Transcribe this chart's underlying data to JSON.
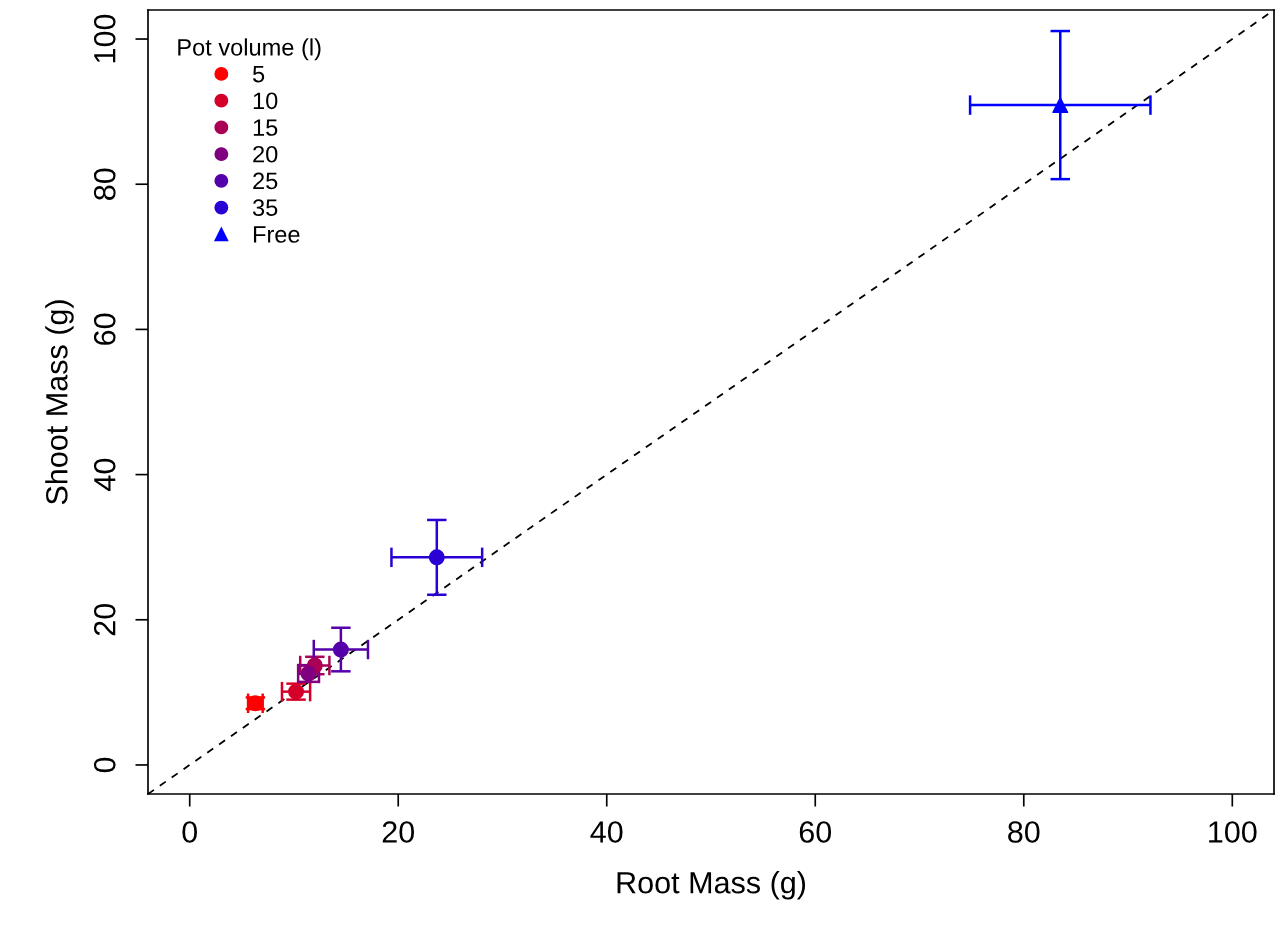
{
  "chart_data": {
    "type": "scatter",
    "xlabel": "Root Mass (g)",
    "ylabel": "Shoot Mass (g)",
    "legend_title": "Pot volume (l)",
    "legend": "top left",
    "grid": false,
    "xlim": [
      -4,
      104
    ],
    "ylim": [
      -4,
      104
    ],
    "xticks": [
      0,
      20,
      40,
      60,
      80,
      100
    ],
    "yticks": [
      0,
      20,
      40,
      60,
      80,
      100
    ],
    "series": [
      {
        "name": "5",
        "color": "#ff0000",
        "marker": "circle",
        "x": [
          6.3
        ],
        "values": [
          8.5
        ],
        "errors": [
          0.8
        ],
        "xerrors": [
          0.7
        ]
      },
      {
        "name": "10",
        "color": "#d5002a",
        "marker": "circle",
        "x": [
          10.2
        ],
        "values": [
          10.1
        ],
        "errors": [
          1.1
        ],
        "xerrors": [
          1.35
        ]
      },
      {
        "name": "15",
        "color": "#aa0055",
        "marker": "circle",
        "x": [
          12.0
        ],
        "values": [
          13.7
        ],
        "errors": [
          1.2
        ],
        "xerrors": [
          1.4
        ]
      },
      {
        "name": "20",
        "color": "#800080",
        "marker": "circle",
        "x": [
          11.4
        ],
        "values": [
          12.6
        ],
        "errors": [
          1.15
        ],
        "xerrors": [
          1.0
        ]
      },
      {
        "name": "25",
        "color": "#5500aa",
        "marker": "circle",
        "x": [
          14.5
        ],
        "values": [
          15.9
        ],
        "errors": [
          3.0
        ],
        "xerrors": [
          2.6
        ]
      },
      {
        "name": "35",
        "color": "#2a00d5",
        "marker": "circle",
        "x": [
          23.7
        ],
        "values": [
          28.6
        ],
        "errors": [
          5.15
        ],
        "xerrors": [
          4.35
        ]
      },
      {
        "name": "Free",
        "color": "#0000ff",
        "marker": "triangle",
        "x": [
          83.5
        ],
        "values": [
          90.9
        ],
        "errors": [
          10.2
        ],
        "xerrors": [
          8.65
        ]
      },
      {
        "type": "line",
        "color": "#000000",
        "line_style": "dashed",
        "marker": "none",
        "x": [
          -4,
          104
        ],
        "values": [
          -4,
          104
        ]
      }
    ]
  }
}
